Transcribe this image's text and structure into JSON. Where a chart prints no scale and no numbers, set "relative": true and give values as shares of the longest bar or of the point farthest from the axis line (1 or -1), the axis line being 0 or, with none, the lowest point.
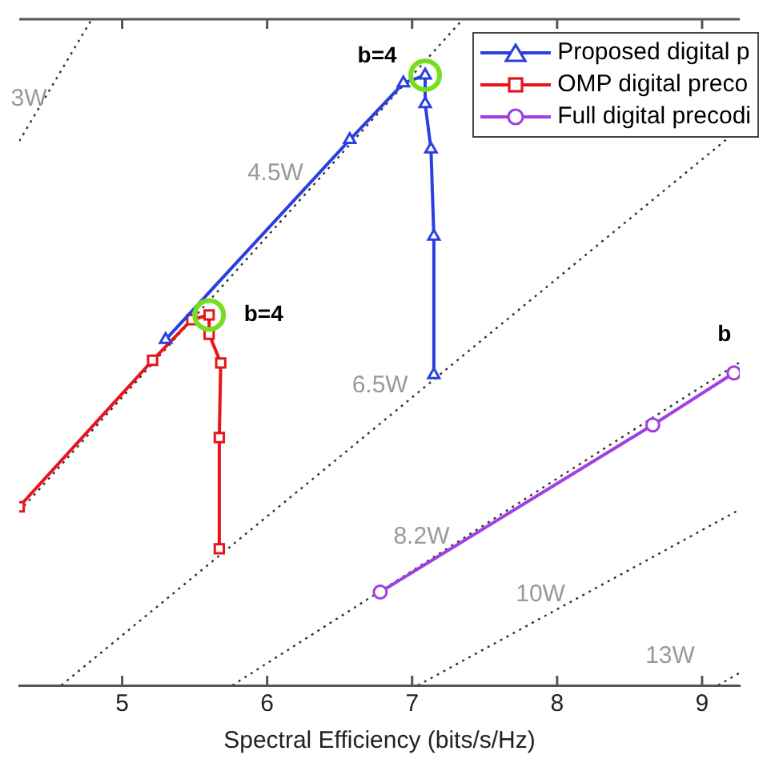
{
  "chart_data": {
    "type": "line",
    "relative": true,
    "xlabel": "Spectral Efficiency (bits/s/Hz)",
    "xlim": [
      4.29,
      9.26
    ],
    "xticks": [
      5,
      6,
      7,
      8,
      9
    ],
    "grid": false,
    "legend": "top right",
    "line_style": "solid",
    "series": [
      {
        "name": "Proposed digital p",
        "color": "#2b3fe0",
        "marker": "triangle",
        "x": [
          5.3,
          6.57,
          6.94,
          7.09,
          7.09,
          7.13,
          7.15,
          7.15
        ],
        "values": [
          0.519,
          0.819,
          0.904,
          0.916,
          0.873,
          0.805,
          0.674,
          0.466
        ]
      },
      {
        "name": "OMP digital preco",
        "color": "#e8141a",
        "marker": "square",
        "x": [
          4.29,
          5.21,
          5.48,
          5.6,
          5.6,
          5.68,
          5.67,
          5.67
        ],
        "values": [
          0.268,
          0.488,
          0.549,
          0.556,
          0.527,
          0.484,
          0.372,
          0.205
        ]
      },
      {
        "name": "Full digital precodi",
        "color": "#a040e0",
        "marker": "circle",
        "x": [
          6.78,
          8.66,
          9.22
        ],
        "values": [
          0.14,
          0.391,
          0.469
        ]
      },
      {
        "type": "scatter",
        "color": "#77dd22",
        "marker": "circle",
        "x": [
          5.6,
          7.09
        ],
        "values": [
          0.556,
          0.916
        ]
      },
      {
        "name": "3W",
        "color": "#333333",
        "marker": "none",
        "line_style": "dotted",
        "x": [
          4.29,
          4.79
        ],
        "values": [
          0.817,
          1.0
        ]
      },
      {
        "name": "4.5W",
        "color": "#333333",
        "marker": "none",
        "line_style": "dotted",
        "x": [
          4.29,
          7.35
        ],
        "values": [
          0.261,
          1.0
        ]
      },
      {
        "name": "6.5W",
        "color": "#333333",
        "marker": "none",
        "line_style": "dotted",
        "x": [
          4.58,
          9.26
        ],
        "values": [
          0,
          0.836
        ]
      },
      {
        "name": "8.2W",
        "color": "#333333",
        "marker": "none",
        "line_style": "dotted",
        "x": [
          5.76,
          9.26
        ],
        "values": [
          0,
          0.485
        ]
      },
      {
        "name": "10W",
        "color": "#333333",
        "marker": "none",
        "line_style": "dotted",
        "x": [
          7.04,
          9.26
        ],
        "values": [
          0,
          0.264
        ]
      },
      {
        "name": "13W",
        "color": "#333333",
        "marker": "none",
        "line_style": "dotted",
        "x": [
          9.11,
          9.26
        ],
        "values": [
          0,
          0.019
        ]
      }
    ],
    "annotations": [
      {
        "text": "b=4",
        "x": 7.09,
        "y": 0.916
      },
      {
        "text": "b=4",
        "x": 5.6,
        "y": 0.556
      },
      {
        "text": "b",
        "x": 9.22,
        "y": 0.469
      }
    ]
  }
}
